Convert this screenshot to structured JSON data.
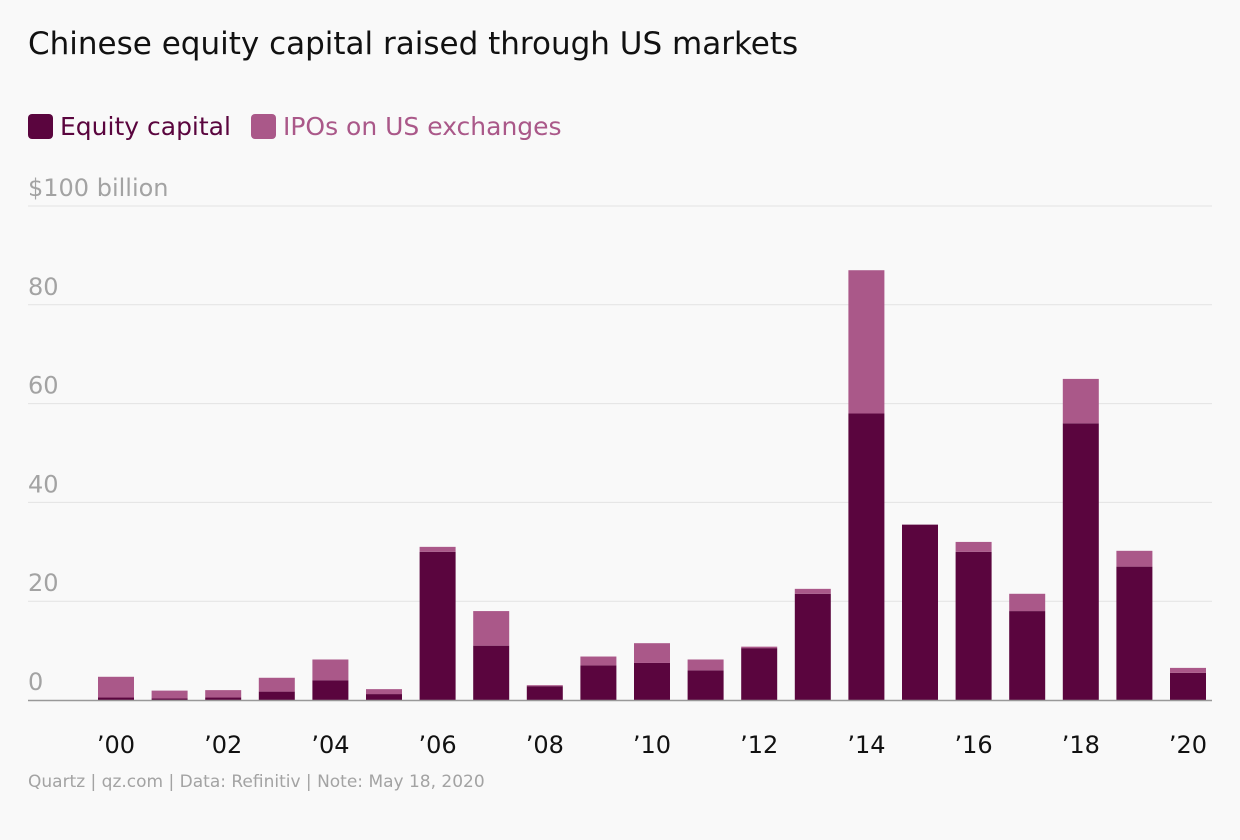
{
  "colors": {
    "equity": "#5a053e",
    "ipo": "#aa5889",
    "axis_text": "#a3a3a3",
    "grid": "#e3e3e3",
    "baseline": "#999999",
    "tick_text": "#111111"
  },
  "chart_data": {
    "type": "bar",
    "stacked": true,
    "title": "Chinese equity capital raised through US markets",
    "ylabel": "$100 billion",
    "ylim": [
      0,
      100
    ],
    "yticks": [
      0,
      20,
      40,
      60,
      80,
      100
    ],
    "ytick_labels": [
      "0",
      "20",
      "40",
      "60",
      "80",
      "$100 billion"
    ],
    "grid": true,
    "legend_position": "top-left",
    "categories": [
      "2000",
      "2001",
      "2002",
      "2003",
      "2004",
      "2005",
      "2006",
      "2007",
      "2008",
      "2009",
      "2010",
      "2011",
      "2012",
      "2013",
      "2014",
      "2015",
      "2016",
      "2017",
      "2018",
      "2019",
      "2020"
    ],
    "xtick_labels": [
      "’00",
      "’02",
      "’04",
      "’06",
      "’08",
      "’10",
      "’12",
      "’14",
      "’16",
      "’18",
      "’20"
    ],
    "xtick_indices": [
      0,
      2,
      4,
      6,
      8,
      10,
      12,
      14,
      16,
      18,
      20
    ],
    "series": [
      {
        "name": "Equity capital",
        "values": [
          0.5,
          0.3,
          0.5,
          1.7,
          4.0,
          1.2,
          30.0,
          11.0,
          2.8,
          7.0,
          7.5,
          6.0,
          10.5,
          21.5,
          58.0,
          35.5,
          30.0,
          18.0,
          56.0,
          27.0,
          5.5
        ]
      },
      {
        "name": "IPOs on US exchanges",
        "values": [
          4.2,
          1.6,
          1.5,
          2.8,
          4.2,
          1.0,
          1.0,
          7.0,
          0.2,
          1.8,
          4.0,
          2.2,
          0.3,
          1.0,
          29.0,
          0.0,
          2.0,
          3.5,
          9.0,
          3.2,
          1.0
        ]
      }
    ],
    "source_note": "Quartz | qz.com | Data: Refinitiv | Note: May 18, 2020"
  }
}
